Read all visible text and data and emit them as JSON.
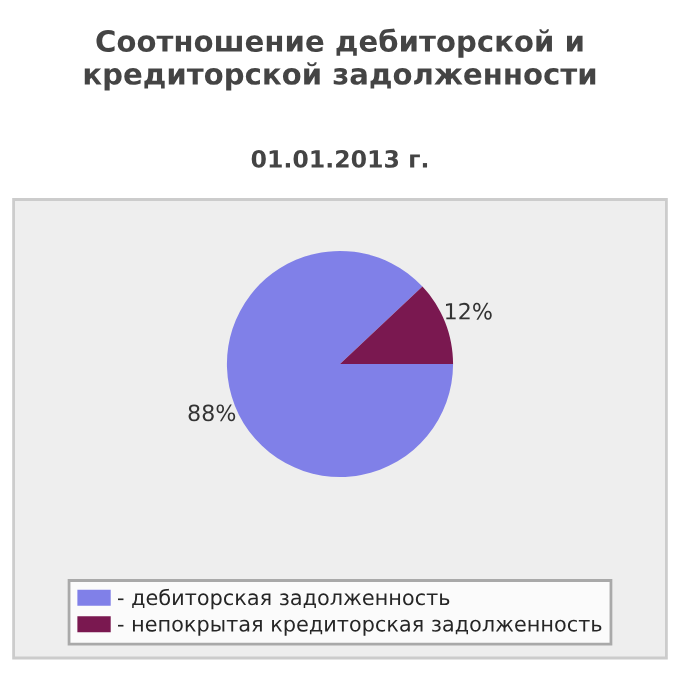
{
  "chart_data": {
    "type": "pie",
    "title": "Соотношение дебиторской и\nкредиторской задолженности",
    "subtitle": "01.01.2013 г.",
    "categories": [
      "- дебиторская задолженность",
      "- непокрытая кредиторская задолженность"
    ],
    "values": [
      88,
      12
    ],
    "colors": [
      "#8080e8",
      "#7a1850"
    ],
    "value_labels": [
      "88%",
      "12%"
    ],
    "legend": "bottom"
  }
}
